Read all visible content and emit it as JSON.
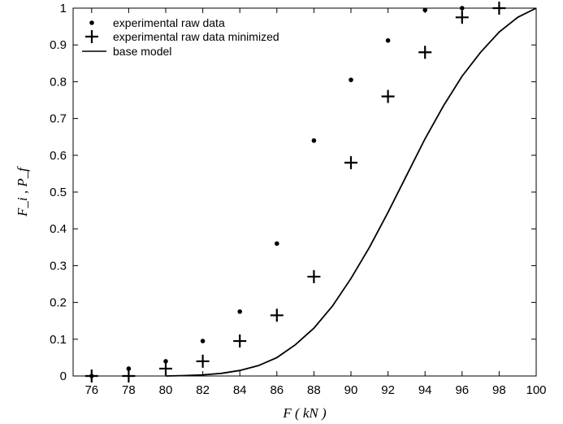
{
  "chart_data": {
    "type": "scatter",
    "xlim": [
      75,
      100
    ],
    "ylim": [
      0,
      1
    ],
    "x_ticks": [
      76,
      78,
      80,
      82,
      84,
      86,
      88,
      90,
      92,
      94,
      96,
      98,
      100
    ],
    "y_ticks": [
      0,
      0.1,
      0.2,
      0.3,
      0.4,
      0.5,
      0.6,
      0.7,
      0.8,
      0.9,
      1
    ],
    "x_tick_labels": [
      "76",
      "78",
      "80",
      "82",
      "84",
      "86",
      "88",
      "90",
      "92",
      "94",
      "96",
      "98",
      "100"
    ],
    "y_tick_labels": [
      "0",
      "0.1",
      "0.2",
      "0.3",
      "0.4",
      "0.5",
      "0.6",
      "0.7",
      "0.8",
      "0.9",
      "1"
    ],
    "xlabel": "F ( kN )",
    "ylabel": "F_i , P_f",
    "grid": false,
    "legend_position": "top-left",
    "series": [
      {
        "name": "experimental raw data",
        "marker": "dot",
        "x": [
          76,
          78,
          80,
          82,
          84,
          86,
          88,
          90,
          92,
          94,
          96
        ],
        "y": [
          0.0,
          0.02,
          0.04,
          0.095,
          0.175,
          0.36,
          0.64,
          0.805,
          0.912,
          0.995,
          1.0
        ]
      },
      {
        "name": "experimental raw data minimized",
        "marker": "plus",
        "x": [
          76,
          78,
          80,
          82,
          84,
          86,
          88,
          90,
          92,
          94,
          96,
          98
        ],
        "y": [
          0.0,
          0.0,
          0.02,
          0.04,
          0.095,
          0.165,
          0.27,
          0.58,
          0.76,
          0.88,
          0.975,
          1.0
        ]
      },
      {
        "name": "base model",
        "marker": "line",
        "x": [
          80,
          81,
          82,
          83,
          84,
          85,
          86,
          87,
          88,
          89,
          90,
          91,
          92,
          93,
          94,
          95,
          96,
          97,
          98,
          99,
          100
        ],
        "y": [
          0.0,
          0.001,
          0.003,
          0.007,
          0.015,
          0.028,
          0.05,
          0.085,
          0.13,
          0.19,
          0.265,
          0.35,
          0.445,
          0.545,
          0.645,
          0.735,
          0.815,
          0.88,
          0.935,
          0.975,
          1.0
        ]
      }
    ]
  }
}
